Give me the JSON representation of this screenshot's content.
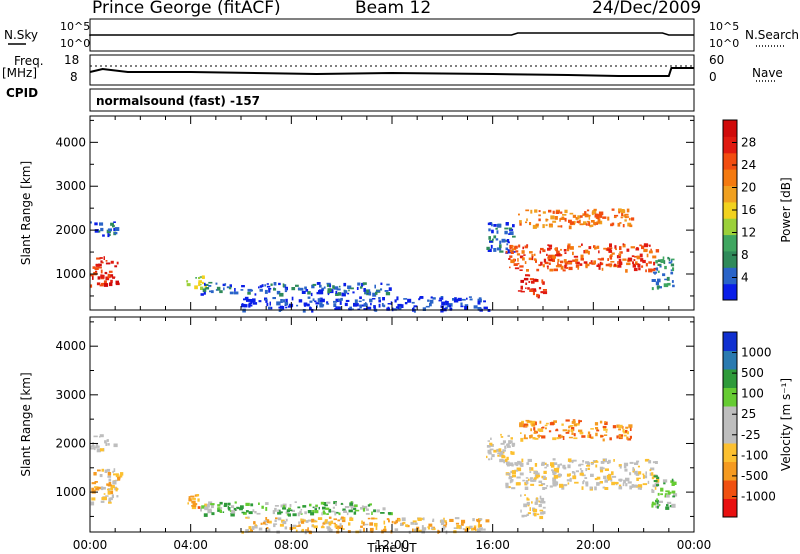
{
  "header": {
    "station": "Prince George (fitACF)",
    "beam": "Beam 12",
    "date": "24/Dec/2009"
  },
  "top_panels": {
    "nsky_label": "N.Sky",
    "nsky_ticks": [
      "10^5",
      "10^0"
    ],
    "nsearch_label": "N.Search",
    "nsearch_ticks": [
      "10^5",
      "10^0"
    ],
    "freq_label": "Freq.",
    "freq_unit": "[MHz]",
    "freq_ticks": [
      "18",
      "8"
    ],
    "nave_label": "Nave",
    "nave_ticks": [
      "60",
      "0"
    ],
    "cpid_label": "CPID",
    "cpid_value": "normalsound (fast) -157"
  },
  "colors": {
    "power_scale": [
      "#0a1ee8",
      "#2a64c8",
      "#2f8a5a",
      "#3fa660",
      "#9bd03a",
      "#f2d21e",
      "#f0a020",
      "#f47a10",
      "#f24d10",
      "#e01a10",
      "#d00a0a"
    ],
    "velocity_scale": [
      "#e81010",
      "#f05010",
      "#f59a20",
      "#fcc030",
      "#bebebe",
      "#bebebe",
      "#66cc33",
      "#2e9a3a",
      "#2a7ab0",
      "#1030d0"
    ]
  },
  "chart_data": [
    {
      "type": "heatmap",
      "title": "Power",
      "ylabel": "Slant Range [km]",
      "xlabel": "",
      "x_ticks": [
        "00:00",
        "04:00",
        "08:00",
        "12:00",
        "16:00",
        "20:00",
        "00:00"
      ],
      "y_ticks": [
        1000,
        2000,
        3000,
        4000
      ],
      "ylim": [
        180,
        4600
      ],
      "xlim_hours": [
        0,
        24
      ],
      "colorbar_label": "Power [dB]",
      "colorbar_ticks": [
        4,
        8,
        12,
        16,
        20,
        24,
        28
      ],
      "regions": [
        {
          "t": [
            0.0,
            0.6
          ],
          "r": [
            700,
            1500
          ],
          "level": 9
        },
        {
          "t": [
            0.6,
            1.1
          ],
          "r": [
            800,
            1400
          ],
          "level": 9
        },
        {
          "t": [
            0.0,
            1.0
          ],
          "r": [
            1900,
            2200
          ],
          "level": 1
        },
        {
          "t": [
            3.8,
            4.6
          ],
          "r": [
            700,
            1000
          ],
          "level": 4
        },
        {
          "t": [
            4.3,
            12.0
          ],
          "r": [
            560,
            820
          ],
          "level": 1
        },
        {
          "t": [
            6.0,
            15.8
          ],
          "r": [
            200,
            500
          ],
          "level": 0
        },
        {
          "t": [
            15.7,
            16.8
          ],
          "r": [
            1500,
            2200
          ],
          "level": 1
        },
        {
          "t": [
            16.5,
            22.5
          ],
          "r": [
            1100,
            1700
          ],
          "level": 8
        },
        {
          "t": [
            17.0,
            21.5
          ],
          "r": [
            2100,
            2500
          ],
          "level": 7
        },
        {
          "t": [
            17.0,
            18.0
          ],
          "r": [
            500,
            1000
          ],
          "level": 9
        },
        {
          "t": [
            22.3,
            23.2
          ],
          "r": [
            700,
            1400
          ],
          "level": 2
        }
      ]
    },
    {
      "type": "heatmap",
      "title": "Velocity",
      "ylabel": "Slant Range [km]",
      "xlabel": "Time UT",
      "x_ticks": [
        "00:00",
        "04:00",
        "08:00",
        "12:00",
        "16:00",
        "20:00",
        "00:00"
      ],
      "y_ticks": [
        1000,
        2000,
        3000,
        4000
      ],
      "ylim": [
        180,
        4600
      ],
      "xlim_hours": [
        0,
        24
      ],
      "colorbar_label": "Velocity [m s⁻¹]",
      "colorbar_ticks": [
        1000,
        500,
        100,
        25,
        -25,
        -100,
        -500,
        -1000
      ],
      "regions": [
        {
          "t": [
            0.0,
            1.2
          ],
          "r": [
            800,
            1500
          ],
          "level": 3
        },
        {
          "t": [
            0.0,
            1.0
          ],
          "r": [
            1900,
            2200
          ],
          "level": 4
        },
        {
          "t": [
            3.8,
            4.6
          ],
          "r": [
            700,
            1000
          ],
          "level": 2
        },
        {
          "t": [
            4.3,
            12.0
          ],
          "r": [
            560,
            820
          ],
          "level": 6
        },
        {
          "t": [
            6.0,
            15.8
          ],
          "r": [
            200,
            500
          ],
          "level": 3
        },
        {
          "t": [
            15.7,
            16.8
          ],
          "r": [
            1500,
            2200
          ],
          "level": 4
        },
        {
          "t": [
            16.5,
            22.5
          ],
          "r": [
            1100,
            1700
          ],
          "level": 4
        },
        {
          "t": [
            17.0,
            21.5
          ],
          "r": [
            2100,
            2500
          ],
          "level": 2
        },
        {
          "t": [
            17.0,
            18.0
          ],
          "r": [
            500,
            1000
          ],
          "level": 4
        },
        {
          "t": [
            22.3,
            23.2
          ],
          "r": [
            700,
            1400
          ],
          "level": 6
        }
      ]
    }
  ]
}
